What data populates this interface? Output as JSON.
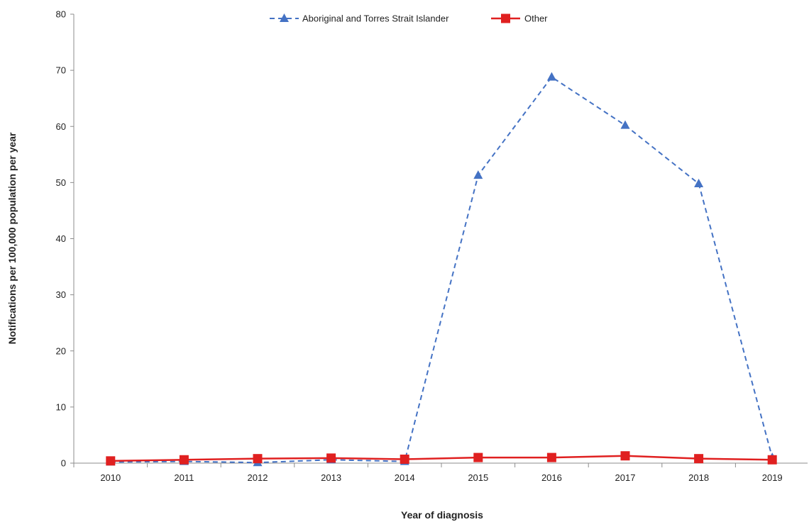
{
  "chart_data": {
    "type": "line",
    "title": "",
    "xlabel": "Year of diagnosis",
    "ylabel": "Notifications per 100,000 population per year",
    "categories": [
      "2010",
      "2011",
      "2012",
      "2013",
      "2014",
      "2015",
      "2016",
      "2017",
      "2018",
      "2019"
    ],
    "ylim": [
      0,
      80
    ],
    "yticks": [
      0,
      10,
      20,
      30,
      40,
      50,
      60,
      70,
      80
    ],
    "grid": false,
    "legend_position": "top-center",
    "series": [
      {
        "name": "Aboriginal and Torres Strait Islander",
        "values": [
          0.2,
          0.3,
          0.1,
          0.6,
          0.3,
          51.3,
          68.8,
          60.2,
          49.8,
          1.0
        ],
        "color": "#4472C4",
        "line_style": "dashed",
        "marker": "triangle"
      },
      {
        "name": "Other",
        "values": [
          0.4,
          0.6,
          0.8,
          0.9,
          0.7,
          1.0,
          1.0,
          1.3,
          0.8,
          0.6
        ],
        "color": "#E02020",
        "line_style": "solid",
        "marker": "square"
      }
    ]
  }
}
